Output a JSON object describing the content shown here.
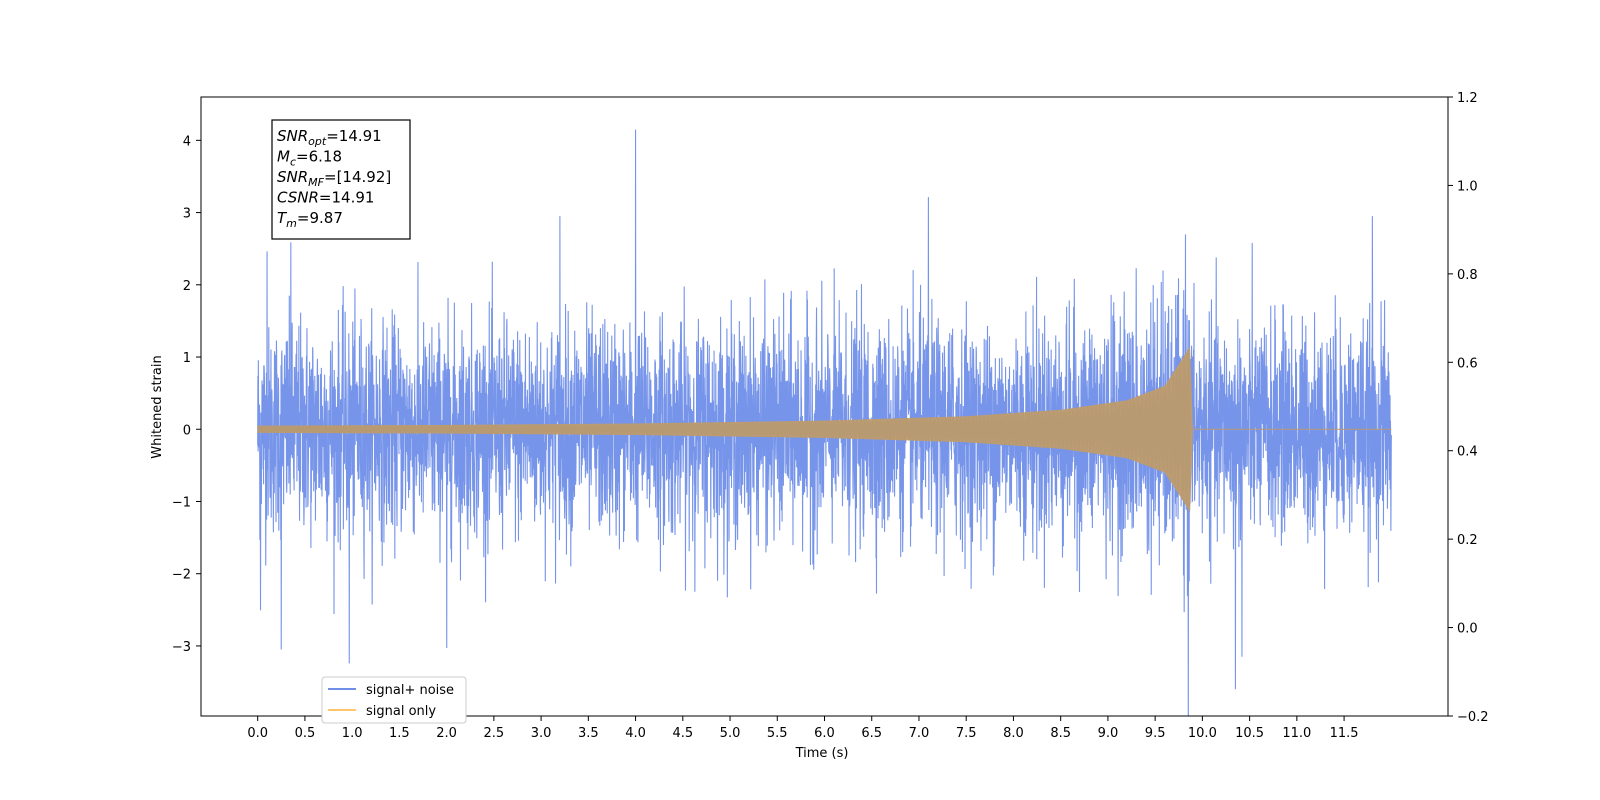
{
  "chart_data": {
    "type": "line",
    "xlabel": "Time (s)",
    "ylabel": "Whitened strain",
    "xlim": [
      -0.6,
      12.6
    ],
    "ylim": [
      -3.97,
      4.6
    ],
    "y2lim": [
      -0.2,
      1.2
    ],
    "x_ticks": [
      0.0,
      0.5,
      1.0,
      1.5,
      2.0,
      2.5,
      3.0,
      3.5,
      4.0,
      4.5,
      5.0,
      5.5,
      6.0,
      6.5,
      7.0,
      7.5,
      8.0,
      8.5,
      9.0,
      9.5,
      10.0,
      10.5,
      11.0,
      11.5
    ],
    "x_tick_labels": [
      "0.0",
      "0.5",
      "1.0",
      "1.5",
      "2.0",
      "2.5",
      "3.0",
      "3.5",
      "4.0",
      "4.5",
      "5.0",
      "5.5",
      "6.0",
      "6.5",
      "7.0",
      "7.5",
      "8.0",
      "8.5",
      "9.0",
      "9.5",
      "10.0",
      "10.5",
      "11.0",
      "11.5"
    ],
    "y_ticks": [
      -3,
      -2,
      -1,
      0,
      1,
      2,
      3,
      4
    ],
    "y_tick_labels": [
      "−3",
      "−2",
      "−1",
      "0",
      "1",
      "2",
      "3",
      "4"
    ],
    "y2_ticks": [
      -0.2,
      0.0,
      0.2,
      0.4,
      0.6,
      0.8,
      1.0,
      1.2
    ],
    "y2_tick_labels": [
      "−0.2",
      "0.0",
      "0.2",
      "0.4",
      "0.6",
      "0.8",
      "1.0",
      "1.2"
    ],
    "grid": false,
    "legend_position": "lower-left",
    "series": [
      {
        "name": "signal+ noise",
        "color": "#6f8ee8",
        "description": "whitened noise + signal, spans t=0 to 12 s",
        "peaks": [
          {
            "x": 0.03,
            "y": -2.5
          },
          {
            "x": 0.1,
            "y": 2.5
          },
          {
            "x": 0.25,
            "y": -3.1
          },
          {
            "x": 0.35,
            "y": 2.55
          },
          {
            "x": 0.97,
            "y": -3.2
          },
          {
            "x": 2.0,
            "y": -3.0
          },
          {
            "x": 3.2,
            "y": 2.95
          },
          {
            "x": 4.0,
            "y": 4.2
          },
          {
            "x": 7.1,
            "y": 3.05
          },
          {
            "x": 9.85,
            "y": -3.15
          },
          {
            "x": 10.35,
            "y": -3.6
          },
          {
            "x": 10.42,
            "y": -3.15
          },
          {
            "x": 11.8,
            "y": -3.15
          },
          {
            "x": 11.8,
            "y": 2.95
          }
        ],
        "typical_envelope": [
          -2.0,
          2.0
        ],
        "x_range": [
          0.0,
          12.0
        ]
      },
      {
        "name": "signal only",
        "color": "#ffc66e",
        "description": "chirp waveform growing in amplitude until merger",
        "x_range": [
          0.0,
          12.0
        ],
        "merger_time": 9.87,
        "amplitude_points": [
          {
            "x": 0.0,
            "y": 0.05
          },
          {
            "x": 2.0,
            "y": 0.06
          },
          {
            "x": 4.0,
            "y": 0.08
          },
          {
            "x": 6.0,
            "y": 0.12
          },
          {
            "x": 7.5,
            "y": 0.18
          },
          {
            "x": 8.5,
            "y": 0.27
          },
          {
            "x": 9.2,
            "y": 0.4
          },
          {
            "x": 9.6,
            "y": 0.6
          },
          {
            "x": 9.8,
            "y": 1.0
          },
          {
            "x": 9.87,
            "y": 1.15
          }
        ]
      }
    ],
    "annotation": {
      "lines": [
        {
          "name": "SNR",
          "sub": "opt",
          "value": "=14.91"
        },
        {
          "name": "M",
          "sub": "c",
          "value": "=6.18"
        },
        {
          "name": "SNR",
          "sub": "MF",
          "value": "=[14.92]"
        },
        {
          "name": "CSNR",
          "sub": "",
          "value": "=14.91"
        },
        {
          "name": "T",
          "sub": "m",
          "value": "=9.87"
        }
      ]
    }
  }
}
